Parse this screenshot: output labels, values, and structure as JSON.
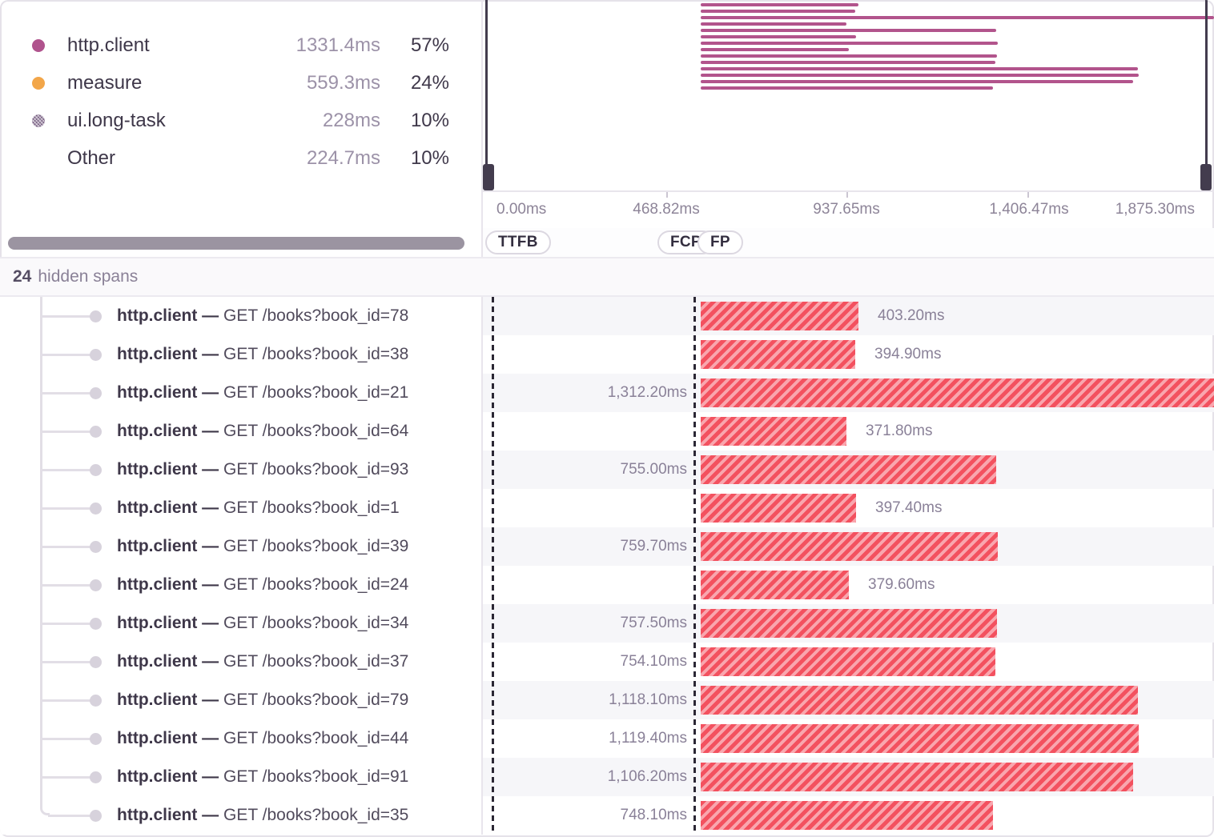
{
  "legend": {
    "items": [
      {
        "name": "http.client",
        "duration": "1331.4ms",
        "percent": "57%",
        "color": "#b0538d",
        "dot": "solid"
      },
      {
        "name": "measure",
        "duration": "559.3ms",
        "percent": "24%",
        "color": "#f2a649",
        "dot": "solid"
      },
      {
        "name": "ui.long-task",
        "duration": "228ms",
        "percent": "10%",
        "color": "#6d5278",
        "dot": "hatched"
      },
      {
        "name": "Other",
        "duration": "224.7ms",
        "percent": "10%",
        "color": "",
        "dot": "none"
      }
    ]
  },
  "minimap": {
    "span_color": "#b2548c",
    "axis_labels": [
      "0.00ms",
      "468.82ms",
      "937.65ms",
      "1,406.47ms",
      "1,875.30ms"
    ],
    "axis_range_ms": [
      0,
      1875.3
    ],
    "spans_start_ms": 558
  },
  "vitals": {
    "badges": [
      "TTFB",
      "FCP",
      "FP"
    ]
  },
  "hidden_spans": {
    "count": "24",
    "label": "hidden spans"
  },
  "span_list": {
    "op": "http.client",
    "separator": "—",
    "rows": [
      {
        "description": "GET /books?book_id=78",
        "duration_ms": 403.2,
        "duration_label": "403.20ms",
        "label_side": "right"
      },
      {
        "description": "GET /books?book_id=38",
        "duration_ms": 394.9,
        "duration_label": "394.90ms",
        "label_side": "right"
      },
      {
        "description": "GET /books?book_id=21",
        "duration_ms": 1312.2,
        "duration_label": "1,312.20ms",
        "label_side": "left"
      },
      {
        "description": "GET /books?book_id=64",
        "duration_ms": 371.8,
        "duration_label": "371.80ms",
        "label_side": "right"
      },
      {
        "description": "GET /books?book_id=93",
        "duration_ms": 755.0,
        "duration_label": "755.00ms",
        "label_side": "left"
      },
      {
        "description": "GET /books?book_id=1",
        "duration_ms": 397.4,
        "duration_label": "397.40ms",
        "label_side": "right"
      },
      {
        "description": "GET /books?book_id=39",
        "duration_ms": 759.7,
        "duration_label": "759.70ms",
        "label_side": "left"
      },
      {
        "description": "GET /books?book_id=24",
        "duration_ms": 379.6,
        "duration_label": "379.60ms",
        "label_side": "right"
      },
      {
        "description": "GET /books?book_id=34",
        "duration_ms": 757.5,
        "duration_label": "757.50ms",
        "label_side": "left"
      },
      {
        "description": "GET /books?book_id=37",
        "duration_ms": 754.1,
        "duration_label": "754.10ms",
        "label_side": "left"
      },
      {
        "description": "GET /books?book_id=79",
        "duration_ms": 1118.1,
        "duration_label": "1,118.10ms",
        "label_side": "left"
      },
      {
        "description": "GET /books?book_id=44",
        "duration_ms": 1119.4,
        "duration_label": "1,119.40ms",
        "label_side": "left"
      },
      {
        "description": "GET /books?book_id=91",
        "duration_ms": 1106.2,
        "duration_label": "1,106.20ms",
        "label_side": "left"
      },
      {
        "description": "GET /books?book_id=35",
        "duration_ms": 748.1,
        "duration_label": "748.10ms",
        "label_side": "left"
      }
    ]
  },
  "bar_color": "#f3515f",
  "bar_stripe_color": "#f9a6ae"
}
